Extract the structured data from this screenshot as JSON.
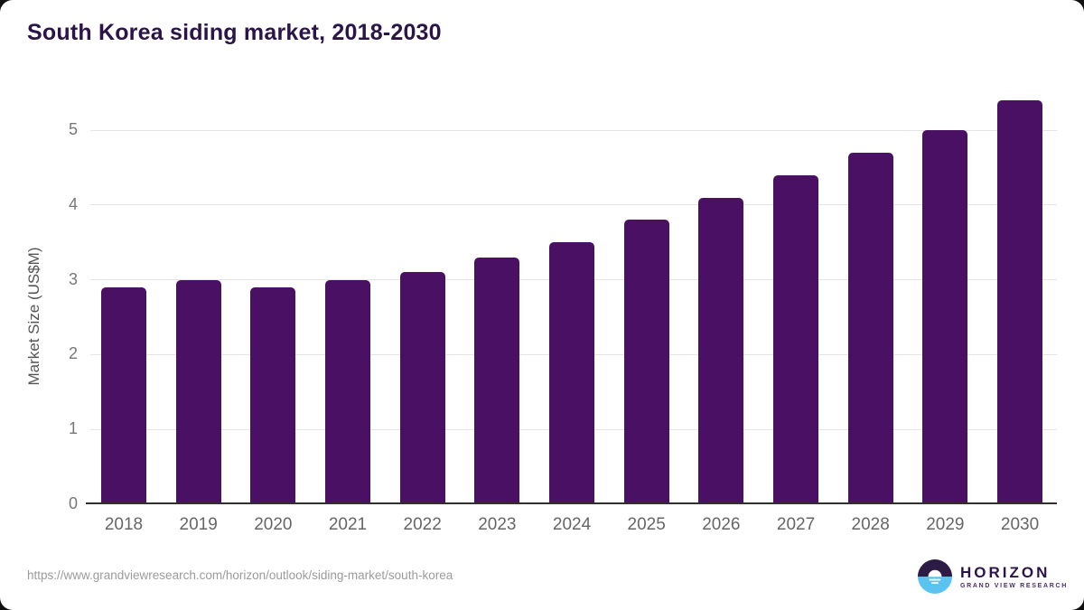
{
  "title": "South Korea siding market, 2018-2030",
  "source_url": "https://www.grandviewresearch.com/horizon/outlook/siding-market/south-korea",
  "logo": {
    "name": "HORIZON",
    "subtitle": "GRAND VIEW RESEARCH"
  },
  "chart_data": {
    "type": "bar",
    "title": "South Korea siding market, 2018-2030",
    "categories": [
      "2018",
      "2019",
      "2020",
      "2021",
      "2022",
      "2023",
      "2024",
      "2025",
      "2026",
      "2027",
      "2028",
      "2029",
      "2030"
    ],
    "values": [
      2.9,
      3.0,
      2.9,
      3.0,
      3.1,
      3.3,
      3.5,
      3.8,
      4.1,
      4.4,
      4.7,
      5.0,
      5.4
    ],
    "xlabel": "",
    "ylabel": "Market Size (US$M)",
    "ylim": [
      0,
      5.5
    ],
    "yticks": [
      0,
      1,
      2,
      3,
      4,
      5
    ],
    "grid": true,
    "legend": false
  },
  "colors": {
    "bar": "#491063",
    "title": "#2b1447",
    "grid": "#e4e4e4",
    "axis_line": "#2f2f2f",
    "tick_label": "#6e6e6e",
    "source": "#9b9b9b",
    "logo_dark": "#2b1b45",
    "logo_blue": "#5ac3ef"
  }
}
